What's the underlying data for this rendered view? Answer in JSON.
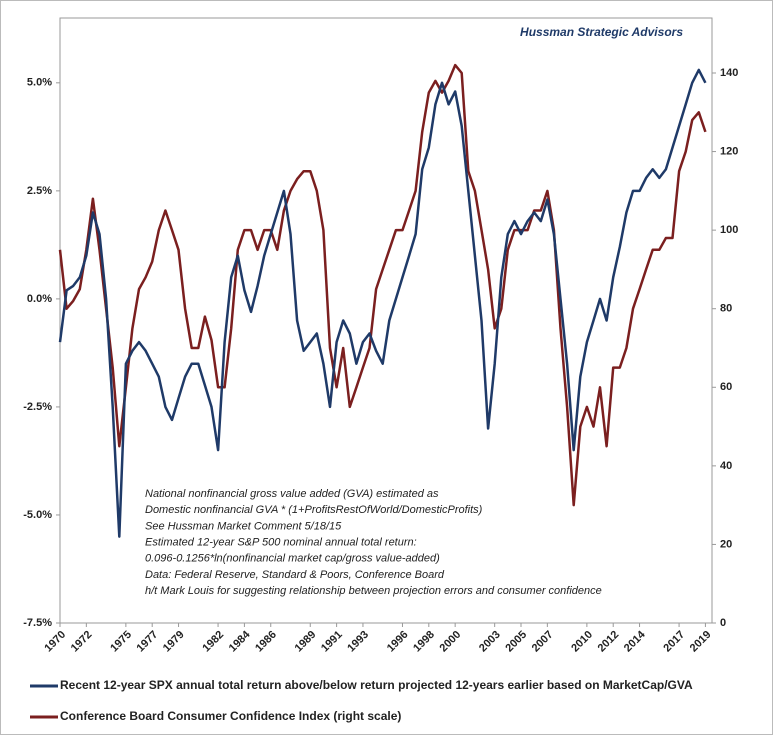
{
  "chart_data": {
    "type": "line",
    "title": "Hussman Strategic Advisors",
    "annotations": [
      "National nonfinancial gross value added (GVA) estimated as",
      "Domestic nonfinancial GVA * (1+ProfitsRestOfWorld/DomesticProfits)",
      "See Hussman Market Comment 5/18/15",
      "Estimated 12-year S&P 500 nominal annual total return:",
      "0.096-0.1256*ln(nonfinancial market cap/gross value-added)",
      "Data: Federal Reserve, Standard & Poors, Conference Board",
      "h/t Mark Louis for suggesting relationship between projection errors and consumer confidence"
    ],
    "x": [
      1970,
      1970.5,
      1971,
      1971.5,
      1972,
      1972.5,
      1973,
      1973.5,
      1974,
      1974.5,
      1975,
      1975.5,
      1976,
      1976.5,
      1977,
      1977.5,
      1978,
      1978.5,
      1979,
      1979.5,
      1980,
      1980.5,
      1981,
      1981.5,
      1982,
      1982.5,
      1983,
      1983.5,
      1984,
      1984.5,
      1985,
      1985.5,
      1986,
      1986.5,
      1987,
      1987.5,
      1988,
      1988.5,
      1989,
      1989.5,
      1990,
      1990.5,
      1991,
      1991.5,
      1992,
      1992.5,
      1993,
      1993.5,
      1994,
      1994.5,
      1995,
      1995.5,
      1996,
      1996.5,
      1997,
      1997.5,
      1998,
      1998.5,
      1999,
      1999.5,
      2000,
      2000.5,
      2001,
      2001.5,
      2002,
      2002.5,
      2003,
      2003.5,
      2004,
      2004.5,
      2005,
      2005.5,
      2006,
      2006.5,
      2007,
      2007.5,
      2008,
      2008.5,
      2009,
      2009.5,
      2010,
      2010.5,
      2011,
      2011.5,
      2012,
      2012.5,
      2013,
      2013.5,
      2014,
      2014.5,
      2015,
      2015.5,
      2016,
      2016.5,
      2017,
      2017.5,
      2018,
      2018.5,
      2019
    ],
    "series": [
      {
        "name": "Recent 12-year SPX annual total return above/below return projected 12-years earlier based on MarketCap/GVA",
        "color": "#1f3a68",
        "values": [
          -1.0,
          0.2,
          0.3,
          0.5,
          1.0,
          2.0,
          1.5,
          0.0,
          -2.5,
          -5.5,
          -1.5,
          -1.2,
          -1.0,
          -1.2,
          -1.5,
          -1.8,
          -2.5,
          -2.8,
          -2.3,
          -1.8,
          -1.5,
          -1.5,
          -2.0,
          -2.5,
          -3.5,
          -1.0,
          0.5,
          1.0,
          0.2,
          -0.3,
          0.3,
          1.0,
          1.5,
          2.0,
          2.5,
          1.5,
          -0.5,
          -1.2,
          -1.0,
          -0.8,
          -1.5,
          -2.5,
          -1.0,
          -0.5,
          -0.8,
          -1.5,
          -1.0,
          -0.8,
          -1.2,
          -1.5,
          -0.5,
          0.0,
          0.5,
          1.0,
          1.5,
          3.0,
          3.5,
          4.5,
          5.0,
          4.5,
          4.8,
          4.0,
          2.5,
          1.0,
          -0.5,
          -3.0,
          -1.5,
          0.5,
          1.5,
          1.8,
          1.5,
          1.8,
          2.0,
          1.8,
          2.3,
          1.5,
          0.0,
          -1.5,
          -3.5,
          -1.8,
          -1.0,
          -0.5,
          0.0,
          -0.5,
          0.5,
          1.2,
          2.0,
          2.5,
          2.5,
          2.8,
          3.0,
          2.8,
          3.0,
          3.5,
          4.0,
          4.5,
          5.0,
          5.3,
          5.0
        ]
      },
      {
        "name": "Conference Board Consumer Confidence Index (right scale)",
        "color": "#7b1f1f",
        "axis": "y2",
        "values": [
          95,
          80,
          82,
          85,
          95,
          108,
          95,
          80,
          65,
          45,
          60,
          75,
          85,
          88,
          92,
          100,
          105,
          100,
          95,
          80,
          70,
          70,
          78,
          72,
          60,
          60,
          75,
          95,
          100,
          100,
          95,
          100,
          100,
          95,
          105,
          110,
          113,
          115,
          115,
          110,
          100,
          70,
          60,
          70,
          55,
          60,
          65,
          70,
          85,
          90,
          95,
          100,
          100,
          105,
          110,
          125,
          135,
          138,
          135,
          138,
          142,
          140,
          115,
          110,
          100,
          90,
          75,
          80,
          95,
          100,
          100,
          100,
          105,
          105,
          110,
          100,
          75,
          55,
          30,
          50,
          55,
          50,
          60,
          45,
          65,
          65,
          70,
          80,
          85,
          90,
          95,
          95,
          98,
          98,
          115,
          120,
          128,
          130,
          125
        ]
      }
    ],
    "xlim": [
      1970,
      2019.5
    ],
    "xticks": [
      1970,
      1972,
      1975,
      1977,
      1979,
      1982,
      1984,
      1986,
      1989,
      1991,
      1993,
      1996,
      1998,
      2000,
      2003,
      2005,
      2007,
      2010,
      2012,
      2014,
      2017,
      2019
    ],
    "ylim": [
      -7.5,
      6.5
    ],
    "yticks": [
      {
        "value": -7.5,
        "label": "-7.5%"
      },
      {
        "value": -5,
        "label": "-5.0%"
      },
      {
        "value": -2.5,
        "label": "-2.5%"
      },
      {
        "value": 0,
        "label": "0.0%"
      },
      {
        "value": 2.5,
        "label": "2.5%"
      },
      {
        "value": 5,
        "label": "5.0%"
      }
    ],
    "y2lim": [
      0,
      154
    ],
    "y2ticks": [
      0,
      20,
      40,
      60,
      80,
      100,
      120,
      140
    ]
  }
}
